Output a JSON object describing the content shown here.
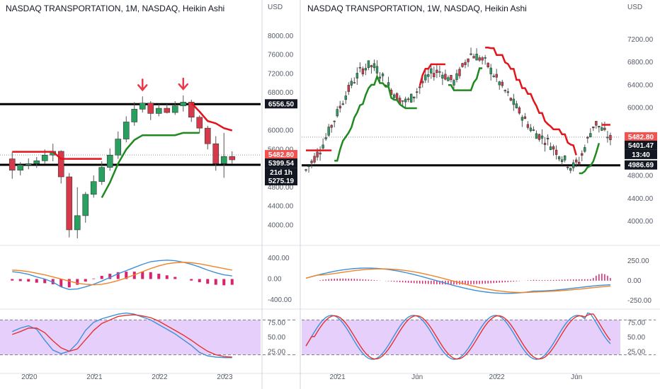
{
  "colors": {
    "up_candle": "#27a060",
    "down_candle": "#d63a4a",
    "stop_green": "#1f8a1f",
    "stop_red": "#e3141c",
    "macd_line": "#3f8fd8",
    "signal_line": "#f0842a",
    "histogram": "#d6246f",
    "stoch_k": "#3f8fd8",
    "stoch_d": "#e3322f",
    "stoch_band": "#e6d0fb",
    "level_line": "#000000",
    "arrow": "#e93a4a",
    "price_tag_red": "#f05350"
  },
  "chart_data": [
    {
      "id": "left",
      "type": "candlestick",
      "title": "NASDAQ TRANSPORTATION, 1M, NASDAQ, Heikin Ashi",
      "currency": "USD",
      "price_ticks": [
        "8000.00",
        "7600.00",
        "7200.00",
        "6800.00",
        "6000.00",
        "5600.00",
        "4800.00",
        "4400.00",
        "4000.00"
      ],
      "price_ylim": [
        3600,
        8400
      ],
      "x_ticks": [
        "2020",
        "2021",
        "2022",
        "2023"
      ],
      "tags": [
        {
          "text": "6556.50",
          "style": "black"
        },
        {
          "text": "5482.80",
          "style": "red"
        },
        {
          "text": "5399.54",
          "style": "black"
        },
        {
          "text": "21d 1h",
          "style": "black"
        },
        {
          "text": "5275.19",
          "style": "black"
        }
      ],
      "levels": [
        6556.5,
        5275.19
      ],
      "last_price": 5482.8,
      "arrows_at_candle": [
        16,
        21
      ],
      "candles": [
        {
          "o": 5400,
          "h": 5540,
          "l": 4980,
          "c": 5160
        },
        {
          "o": 5160,
          "h": 5330,
          "l": 5050,
          "c": 5270
        },
        {
          "o": 5270,
          "h": 5410,
          "l": 5180,
          "c": 5300
        },
        {
          "o": 5300,
          "h": 5440,
          "l": 5210,
          "c": 5360
        },
        {
          "o": 5360,
          "h": 5600,
          "l": 5300,
          "c": 5480
        },
        {
          "o": 5480,
          "h": 5720,
          "l": 5350,
          "c": 5560
        },
        {
          "o": 5560,
          "h": 5580,
          "l": 4880,
          "c": 5020
        },
        {
          "o": 5020,
          "h": 5100,
          "l": 3740,
          "c": 3900
        },
        {
          "o": 3900,
          "h": 4800,
          "l": 3720,
          "c": 4200
        },
        {
          "o": 4200,
          "h": 4700,
          "l": 4050,
          "c": 4650
        },
        {
          "o": 4650,
          "h": 5050,
          "l": 4580,
          "c": 4920
        },
        {
          "o": 4920,
          "h": 5350,
          "l": 4850,
          "c": 5220
        },
        {
          "o": 5220,
          "h": 5620,
          "l": 5150,
          "c": 5480
        },
        {
          "o": 5480,
          "h": 5980,
          "l": 5400,
          "c": 5820
        },
        {
          "o": 5820,
          "h": 6300,
          "l": 5750,
          "c": 6180
        },
        {
          "o": 6180,
          "h": 6600,
          "l": 6100,
          "c": 6450
        },
        {
          "o": 6450,
          "h": 6720,
          "l": 6380,
          "c": 6580
        },
        {
          "o": 6580,
          "h": 6620,
          "l": 6220,
          "c": 6360
        },
        {
          "o": 6360,
          "h": 6560,
          "l": 6300,
          "c": 6470
        },
        {
          "o": 6470,
          "h": 6560,
          "l": 6360,
          "c": 6380
        },
        {
          "o": 6380,
          "h": 6620,
          "l": 6330,
          "c": 6520
        },
        {
          "o": 6520,
          "h": 6740,
          "l": 6400,
          "c": 6600
        },
        {
          "o": 6600,
          "h": 6650,
          "l": 6180,
          "c": 6280
        },
        {
          "o": 6280,
          "h": 6320,
          "l": 5950,
          "c": 6050
        },
        {
          "o": 6050,
          "h": 6100,
          "l": 5600,
          "c": 5720
        },
        {
          "o": 5720,
          "h": 5880,
          "l": 5150,
          "c": 5300
        },
        {
          "o": 5300,
          "h": 5950,
          "l": 5000,
          "c": 5450
        },
        {
          "o": 5450,
          "h": 5560,
          "l": 5290,
          "c": 5380
        }
      ],
      "trail_red_from": [
        [
          0,
          5550
        ],
        [
          5,
          5550
        ],
        [
          6,
          5400
        ],
        [
          8,
          5400
        ],
        [
          9,
          5400
        ],
        [
          10,
          5400
        ],
        [
          11,
          5400
        ]
      ],
      "trail_green": [
        [
          11,
          4580
        ],
        [
          12,
          4900
        ],
        [
          13,
          5300
        ],
        [
          14,
          5600
        ],
        [
          15,
          5800
        ],
        [
          16,
          5900
        ],
        [
          17,
          5900
        ],
        [
          18,
          5900
        ],
        [
          19,
          5900
        ],
        [
          20,
          5900
        ],
        [
          21,
          5950
        ],
        [
          22,
          5950
        ],
        [
          23,
          5950
        ]
      ],
      "trail_red_to": [
        [
          22,
          6580
        ],
        [
          23,
          6400
        ],
        [
          24,
          6200
        ],
        [
          25,
          6150
        ],
        [
          26,
          6050
        ],
        [
          27,
          6000
        ]
      ],
      "macd_ticks": [
        "400.00",
        "0.00",
        "-400.00"
      ],
      "macd_ylim": [
        -560,
        600
      ],
      "macd": [
        140,
        120,
        90,
        40,
        0,
        -60,
        -150,
        -200,
        -190,
        -150,
        -100,
        -40,
        30,
        100,
        160,
        220,
        280,
        330,
        350,
        360,
        350,
        320,
        280,
        230,
        170,
        120,
        80,
        60
      ],
      "signal": [
        170,
        160,
        140,
        110,
        80,
        40,
        0,
        -40,
        -80,
        -100,
        -110,
        -100,
        -70,
        -30,
        20,
        80,
        140,
        200,
        250,
        290,
        310,
        320,
        310,
        290,
        260,
        230,
        200,
        170
      ],
      "hist": [
        -30,
        -40,
        -50,
        -70,
        -80,
        -100,
        -150,
        -160,
        -110,
        -50,
        10,
        60,
        100,
        130,
        140,
        140,
        140,
        130,
        100,
        70,
        40,
        0,
        -30,
        -60,
        -90,
        -110,
        -120,
        -110
      ],
      "stoch_ticks": [
        "75.00",
        "50.00",
        "25.00"
      ],
      "stoch_band": [
        20,
        80
      ],
      "stoch_k": [
        60,
        66,
        70,
        64,
        45,
        28,
        22,
        26,
        40,
        62,
        76,
        82,
        86,
        90,
        92,
        90,
        85,
        80,
        72,
        64,
        56,
        46,
        36,
        24,
        18,
        16,
        15,
        15
      ],
      "stoch_d": [
        55,
        60,
        66,
        66,
        58,
        44,
        32,
        26,
        30,
        46,
        62,
        74,
        80,
        86,
        88,
        89,
        87,
        84,
        78,
        70,
        62,
        54,
        45,
        35,
        26,
        20,
        17,
        16
      ]
    },
    {
      "id": "right",
      "type": "candlestick",
      "title": "NASDAQ TRANSPORTATION, 1W, NASDAQ, Heikin Ashi",
      "currency": "USD",
      "price_ticks": [
        "7200.00",
        "6800.00",
        "6400.00",
        "6000.00",
        "4800.00",
        "4400.00",
        "4000.00"
      ],
      "price_ylim": [
        3600,
        7600
      ],
      "x_ticks": [
        "2021",
        "Jun",
        "2022",
        "Jun"
      ],
      "tags": [
        {
          "text": "5482.80",
          "style": "red"
        },
        {
          "text": "5401.47",
          "style": "black"
        },
        {
          "text": "13:40",
          "style": "black"
        },
        {
          "text": "4986.69",
          "style": "black"
        }
      ],
      "levels": [
        4986.69
      ],
      "last_price": 5482.8,
      "macd_ticks": [
        "250.00",
        "0.00",
        "-250.00"
      ],
      "macd_ylim": [
        -350,
        420
      ],
      "stoch_ticks": [
        "75.00",
        "50.00",
        "25.00"
      ],
      "stoch_band": [
        20,
        80
      ]
    }
  ]
}
